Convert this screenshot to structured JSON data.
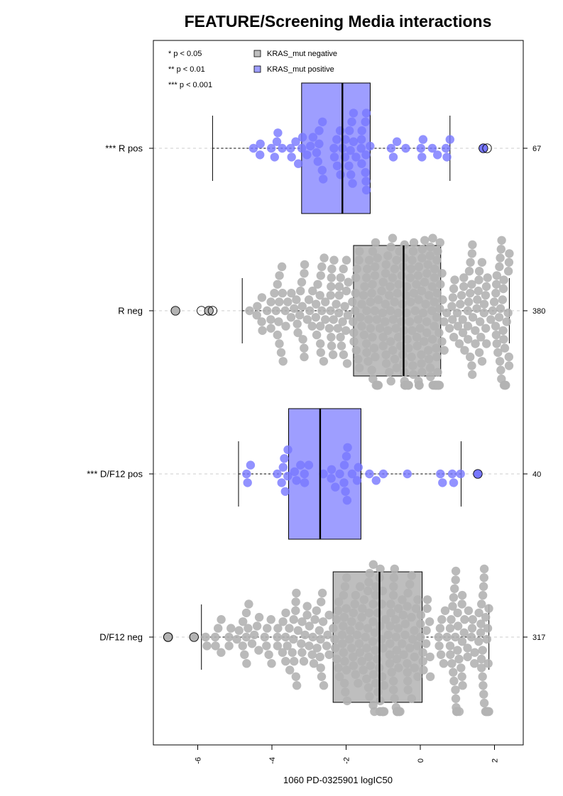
{
  "chart_data": {
    "type": "box",
    "title": "FEATURE/Screening Media interactions",
    "xlabel": "1060 PD-0325901 logIC50",
    "xlim": [
      -7.2,
      2.7
    ],
    "x_ticks": [
      -6,
      -4,
      -2,
      0,
      2
    ],
    "x_tick_labels": [
      "-6",
      "-4",
      "-2",
      "0",
      "2"
    ],
    "grid": false,
    "legend_position": "top-left",
    "significance_legend": [
      "* p < 0.05",
      "** p < 0.01",
      "*** p < 0.001"
    ],
    "legend": [
      {
        "label": "KRAS_mut negative",
        "color": "#bebebe"
      },
      {
        "label": "KRAS_mut positive",
        "color": "#9e9eff"
      }
    ],
    "colors": {
      "negative": "#bebebe",
      "positive": "#9e9eff",
      "point_negative": "#b3b3b3",
      "point_positive": "#7777ff"
    },
    "groups": [
      {
        "label": "*** R pos",
        "count": "67",
        "status": "positive",
        "whisker_low": -5.6,
        "q1": -3.2,
        "median": -2.1,
        "q3": -1.35,
        "whisker_high": 0.8,
        "outliers": [
          1.7,
          1.8
        ]
      },
      {
        "label": "R neg",
        "count": "380",
        "status": "negative",
        "whisker_low": -4.8,
        "q1": -1.8,
        "median": -0.45,
        "q3": 0.55,
        "whisker_high": 2.4,
        "outliers": [
          -6.6,
          -5.9,
          -5.7,
          -5.6
        ]
      },
      {
        "label": "*** D/F12 pos",
        "count": "40",
        "status": "positive",
        "whisker_low": -4.9,
        "q1": -3.55,
        "median": -2.7,
        "q3": -1.6,
        "whisker_high": 1.1,
        "outliers": [
          1.55
        ]
      },
      {
        "label": "D/F12 neg",
        "count": "317",
        "status": "negative",
        "whisker_low": -5.9,
        "q1": -2.35,
        "median": -1.1,
        "q3": 0.05,
        "whisker_high": 1.85,
        "outliers": [
          -6.8,
          -6.8,
          -6.1
        ]
      }
    ]
  }
}
